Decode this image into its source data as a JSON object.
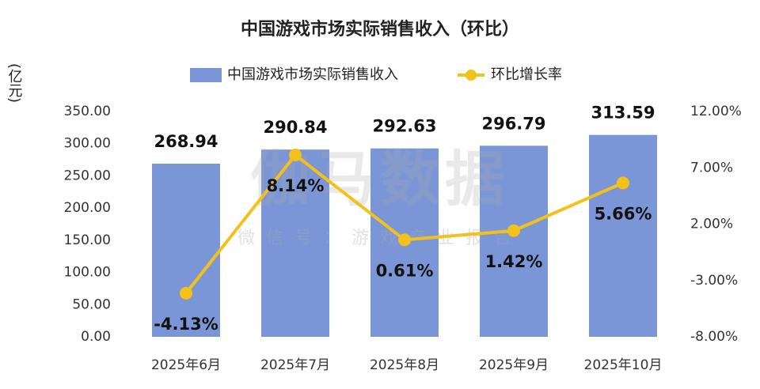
{
  "chart_data": {
    "type": "bar",
    "title": "中国游戏市场实际销售收入（环比）",
    "y_label": "(亿元)",
    "watermark": "伽马数据",
    "watermark_sub": "微信号：游戏产业报告",
    "categories": [
      "2025年6月",
      "2025年7月",
      "2025年8月",
      "2025年9月",
      "2025年10月"
    ],
    "series": [
      {
        "name": "中国游戏市场实际销售收入",
        "type": "bar",
        "color": "#7b96d6",
        "values": [
          268.94,
          290.84,
          292.63,
          296.79,
          313.59
        ],
        "value_labels": [
          "268.94",
          "290.84",
          "292.63",
          "296.79",
          "313.59"
        ]
      },
      {
        "name": "环比增长率",
        "type": "line",
        "axis": "y2",
        "color": "#f2c21b",
        "values": [
          -4.13,
          8.14,
          0.61,
          1.42,
          5.66
        ],
        "value_labels": [
          "-4.13%",
          "8.14%",
          "0.61%",
          "1.42%",
          "5.66%"
        ]
      }
    ],
    "ylim": [
      0,
      350
    ],
    "yticks": [
      {
        "value": 0,
        "label": "0.00"
      },
      {
        "value": 50,
        "label": "50.00"
      },
      {
        "value": 100,
        "label": "100.00"
      },
      {
        "value": 150,
        "label": "150.00"
      },
      {
        "value": 200,
        "label": "200.00"
      },
      {
        "value": 250,
        "label": "250.00"
      },
      {
        "value": 300,
        "label": "300.00"
      },
      {
        "value": 350,
        "label": "350.00"
      }
    ],
    "y2lim": [
      -8,
      12
    ],
    "y2ticks": [
      {
        "value": -8,
        "label": "-8.00%"
      },
      {
        "value": -3,
        "label": "-3.00%"
      },
      {
        "value": 2,
        "label": "2.00%"
      },
      {
        "value": 7,
        "label": "7.00%"
      },
      {
        "value": 12,
        "label": "12.00%"
      }
    ],
    "legend": "top"
  }
}
